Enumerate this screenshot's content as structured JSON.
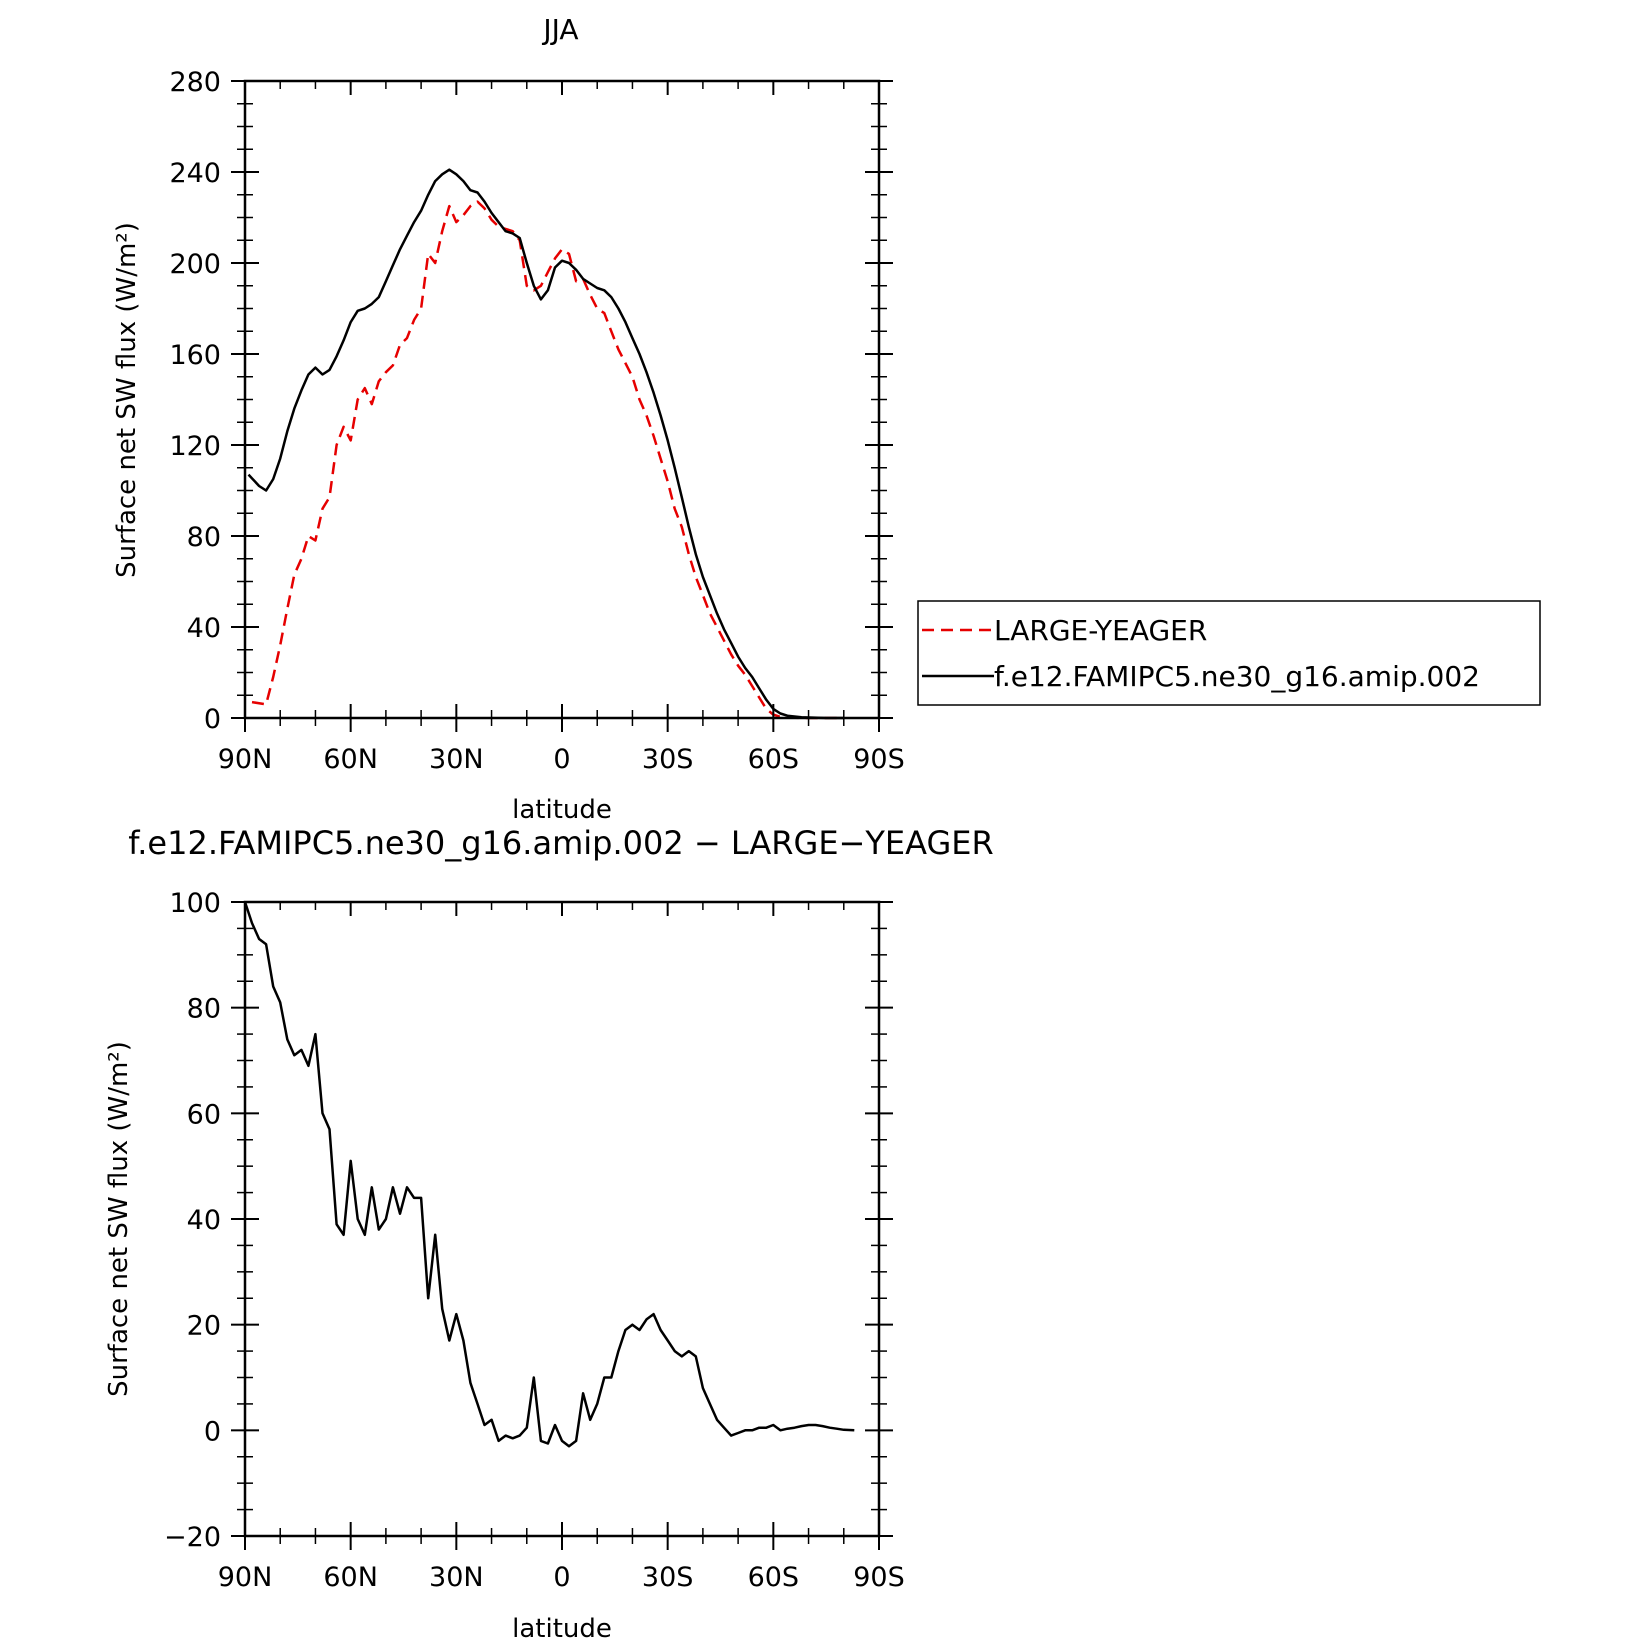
{
  "chart_data": [
    {
      "type": "line",
      "title": "JJA",
      "xlabel": "latitude",
      "ylabel": "Surface net SW flux (W/m²)",
      "xlim": [
        90,
        -90
      ],
      "ylim": [
        0,
        280
      ],
      "xticks": [
        {
          "value": 90,
          "label": "90N"
        },
        {
          "value": 60,
          "label": "60N"
        },
        {
          "value": 30,
          "label": "30N"
        },
        {
          "value": 0,
          "label": "0"
        },
        {
          "value": -30,
          "label": "30S"
        },
        {
          "value": -60,
          "label": "60S"
        },
        {
          "value": -90,
          "label": "90S"
        }
      ],
      "yticks": [
        {
          "value": 0,
          "label": "0"
        },
        {
          "value": 40,
          "label": "40"
        },
        {
          "value": 80,
          "label": "80"
        },
        {
          "value": 120,
          "label": "120"
        },
        {
          "value": 160,
          "label": "160"
        },
        {
          "value": 200,
          "label": "200"
        },
        {
          "value": 240,
          "label": "240"
        },
        {
          "value": 280,
          "label": "280"
        }
      ],
      "legend": {
        "placement": "right",
        "entries": [
          {
            "label": "LARGE-YEAGER",
            "color": "#e60000",
            "dash": true
          },
          {
            "label": "f.e12.FAMIPC5.ne30_g16.amip.002",
            "color": "#000000",
            "dash": false
          }
        ]
      },
      "grid": false,
      "series": [
        {
          "name": "LARGE-YEAGER",
          "color": "#e60000",
          "style": "dashed",
          "points": [
            [
              88,
              7
            ],
            [
              84,
              6
            ],
            [
              82,
              18
            ],
            [
              80,
              32
            ],
            [
              78,
              48
            ],
            [
              76,
              63
            ],
            [
              74,
              70
            ],
            [
              72,
              80
            ],
            [
              70,
              78
            ],
            [
              68,
              92
            ],
            [
              66,
              97
            ],
            [
              64,
              120
            ],
            [
              62,
              128
            ],
            [
              60,
              122
            ],
            [
              58,
              140
            ],
            [
              56,
              145
            ],
            [
              54,
              138
            ],
            [
              52,
              148
            ],
            [
              50,
              152
            ],
            [
              48,
              155
            ],
            [
              46,
              164
            ],
            [
              44,
              167
            ],
            [
              42,
              175
            ],
            [
              40,
              180
            ],
            [
              38,
              204
            ],
            [
              36,
              200
            ],
            [
              34,
              214
            ],
            [
              32,
              225
            ],
            [
              30,
              218
            ],
            [
              28,
              221
            ],
            [
              26,
              225
            ],
            [
              24,
              227
            ],
            [
              22,
              224
            ],
            [
              20,
              219
            ],
            [
              18,
              216
            ],
            [
              16,
              215
            ],
            [
              14,
              214
            ],
            [
              12,
              210
            ],
            [
              10,
              190
            ],
            [
              8,
              188
            ],
            [
              6,
              190
            ],
            [
              4,
              196
            ],
            [
              2,
              202
            ],
            [
              0,
              206
            ],
            [
              -2,
              204
            ],
            [
              -4,
              192
            ],
            [
              -6,
              193
            ],
            [
              -8,
              186
            ],
            [
              -10,
              180
            ],
            [
              -12,
              178
            ],
            [
              -14,
              170
            ],
            [
              -16,
              162
            ],
            [
              -18,
              156
            ],
            [
              -20,
              150
            ],
            [
              -22,
              140
            ],
            [
              -24,
              133
            ],
            [
              -26,
              124
            ],
            [
              -28,
              114
            ],
            [
              -30,
              104
            ],
            [
              -32,
              92
            ],
            [
              -34,
              84
            ],
            [
              -36,
              72
            ],
            [
              -38,
              62
            ],
            [
              -40,
              54
            ],
            [
              -42,
              46
            ],
            [
              -44,
              40
            ],
            [
              -46,
              34
            ],
            [
              -48,
              28
            ],
            [
              -50,
              23
            ],
            [
              -52,
              19
            ],
            [
              -54,
              14
            ],
            [
              -56,
              9
            ],
            [
              -58,
              4
            ],
            [
              -60,
              1.5
            ],
            [
              -62,
              0.5
            ],
            [
              -64,
              0.2
            ],
            [
              -68,
              0
            ],
            [
              -75,
              0
            ],
            [
              -80,
              0
            ]
          ]
        },
        {
          "name": "f.e12.FAMIPC5.ne30_g16.amip.002",
          "color": "#000000",
          "style": "solid",
          "points": [
            [
              89,
              107
            ],
            [
              86,
              102
            ],
            [
              84,
              100
            ],
            [
              82,
              105
            ],
            [
              80,
              114
            ],
            [
              78,
              126
            ],
            [
              76,
              136
            ],
            [
              74,
              144
            ],
            [
              72,
              151
            ],
            [
              70,
              154
            ],
            [
              68,
              151
            ],
            [
              66,
              153
            ],
            [
              64,
              159
            ],
            [
              62,
              166
            ],
            [
              60,
              174
            ],
            [
              58,
              179
            ],
            [
              56,
              180
            ],
            [
              54,
              182
            ],
            [
              52,
              185
            ],
            [
              50,
              192
            ],
            [
              48,
              199
            ],
            [
              46,
              206
            ],
            [
              44,
              212
            ],
            [
              42,
              218
            ],
            [
              40,
              223
            ],
            [
              38,
              230
            ],
            [
              36,
              236
            ],
            [
              34,
              239
            ],
            [
              32,
              241
            ],
            [
              30,
              239
            ],
            [
              28,
              236
            ],
            [
              26,
              232
            ],
            [
              24,
              231
            ],
            [
              22,
              227
            ],
            [
              20,
              222
            ],
            [
              18,
              218
            ],
            [
              16,
              214
            ],
            [
              14,
              213
            ],
            [
              12,
              211
            ],
            [
              10,
              200
            ],
            [
              8,
              190
            ],
            [
              6,
              184
            ],
            [
              4,
              188
            ],
            [
              2,
              198
            ],
            [
              0,
              201
            ],
            [
              -2,
              200
            ],
            [
              -4,
              197
            ],
            [
              -6,
              193
            ],
            [
              -8,
              191
            ],
            [
              -10,
              189
            ],
            [
              -12,
              188
            ],
            [
              -14,
              185
            ],
            [
              -16,
              180
            ],
            [
              -18,
              174
            ],
            [
              -20,
              167
            ],
            [
              -22,
              160
            ],
            [
              -24,
              152
            ],
            [
              -26,
              143
            ],
            [
              -28,
              133
            ],
            [
              -30,
              122
            ],
            [
              -32,
              110
            ],
            [
              -34,
              97
            ],
            [
              -36,
              84
            ],
            [
              -38,
              72
            ],
            [
              -40,
              62
            ],
            [
              -42,
              54
            ],
            [
              -44,
              46
            ],
            [
              -46,
              39
            ],
            [
              -48,
              33
            ],
            [
              -50,
              27
            ],
            [
              -52,
              22
            ],
            [
              -54,
              18
            ],
            [
              -56,
              13
            ],
            [
              -58,
              8
            ],
            [
              -60,
              4
            ],
            [
              -62,
              2
            ],
            [
              -64,
              1
            ],
            [
              -68,
              0.3
            ],
            [
              -75,
              0
            ],
            [
              -80,
              0
            ]
          ]
        }
      ]
    },
    {
      "type": "line",
      "title": "f.e12.FAMIPC5.ne30_g16.amip.002 − LARGE−YEAGER",
      "xlabel": "latitude",
      "ylabel": "Surface net SW flux (W/m²)",
      "xlim": [
        90,
        -90
      ],
      "ylim": [
        -20,
        100
      ],
      "xticks": [
        {
          "value": 90,
          "label": "90N"
        },
        {
          "value": 60,
          "label": "60N"
        },
        {
          "value": 30,
          "label": "30N"
        },
        {
          "value": 0,
          "label": "0"
        },
        {
          "value": -30,
          "label": "30S"
        },
        {
          "value": -60,
          "label": "60S"
        },
        {
          "value": -90,
          "label": "90S"
        }
      ],
      "yticks": [
        {
          "value": -20,
          "label": "−20"
        },
        {
          "value": 0,
          "label": "0"
        },
        {
          "value": 20,
          "label": "20"
        },
        {
          "value": 40,
          "label": "40"
        },
        {
          "value": 60,
          "label": "60"
        },
        {
          "value": 80,
          "label": "80"
        },
        {
          "value": 100,
          "label": "100"
        }
      ],
      "grid": false,
      "series": [
        {
          "color": "#000000",
          "style": "solid",
          "points": [
            [
              90,
              100
            ],
            [
              88,
              96
            ],
            [
              86,
              93
            ],
            [
              84,
              92
            ],
            [
              82,
              84
            ],
            [
              80,
              81
            ],
            [
              78,
              74
            ],
            [
              76,
              71
            ],
            [
              74,
              72
            ],
            [
              72,
              69
            ],
            [
              70,
              75
            ],
            [
              68,
              60
            ],
            [
              66,
              57
            ],
            [
              64,
              39
            ],
            [
              62,
              37
            ],
            [
              60,
              51
            ],
            [
              58,
              40
            ],
            [
              56,
              37
            ],
            [
              54,
              46
            ],
            [
              52,
              38
            ],
            [
              50,
              40
            ],
            [
              48,
              46
            ],
            [
              46,
              41
            ],
            [
              44,
              46
            ],
            [
              42,
              44
            ],
            [
              40,
              44
            ],
            [
              38,
              25
            ],
            [
              36,
              37
            ],
            [
              34,
              23
            ],
            [
              32,
              17
            ],
            [
              30,
              22
            ],
            [
              28,
              17
            ],
            [
              26,
              9
            ],
            [
              24,
              5
            ],
            [
              22,
              1
            ],
            [
              20,
              2
            ],
            [
              18,
              -2
            ],
            [
              16,
              -1
            ],
            [
              14,
              -1.5
            ],
            [
              12,
              -1
            ],
            [
              10,
              0.5
            ],
            [
              8,
              10
            ],
            [
              6,
              -2
            ],
            [
              4,
              -2.5
            ],
            [
              2,
              1
            ],
            [
              0,
              -2
            ],
            [
              -2,
              -3
            ],
            [
              -4,
              -2
            ],
            [
              -6,
              7
            ],
            [
              -8,
              2
            ],
            [
              -10,
              5
            ],
            [
              -12,
              10
            ],
            [
              -14,
              10
            ],
            [
              -16,
              15
            ],
            [
              -18,
              19
            ],
            [
              -20,
              20
            ],
            [
              -22,
              19
            ],
            [
              -24,
              21
            ],
            [
              -26,
              22
            ],
            [
              -28,
              19
            ],
            [
              -30,
              17
            ],
            [
              -32,
              15
            ],
            [
              -34,
              14
            ],
            [
              -36,
              15
            ],
            [
              -38,
              14
            ],
            [
              -40,
              8
            ],
            [
              -42,
              5
            ],
            [
              -44,
              2
            ],
            [
              -46,
              0.5
            ],
            [
              -48,
              -1
            ],
            [
              -50,
              -0.5
            ],
            [
              -52,
              0
            ],
            [
              -54,
              0
            ],
            [
              -56,
              0.5
            ],
            [
              -58,
              0.5
            ],
            [
              -60,
              1
            ],
            [
              -62,
              0
            ],
            [
              -64,
              0.3
            ],
            [
              -66,
              0.5
            ],
            [
              -68,
              0.8
            ],
            [
              -70,
              1
            ],
            [
              -72,
              1
            ],
            [
              -74,
              0.8
            ],
            [
              -76,
              0.5
            ],
            [
              -78,
              0.3
            ],
            [
              -80,
              0.1
            ],
            [
              -83,
              0
            ]
          ]
        }
      ]
    }
  ]
}
